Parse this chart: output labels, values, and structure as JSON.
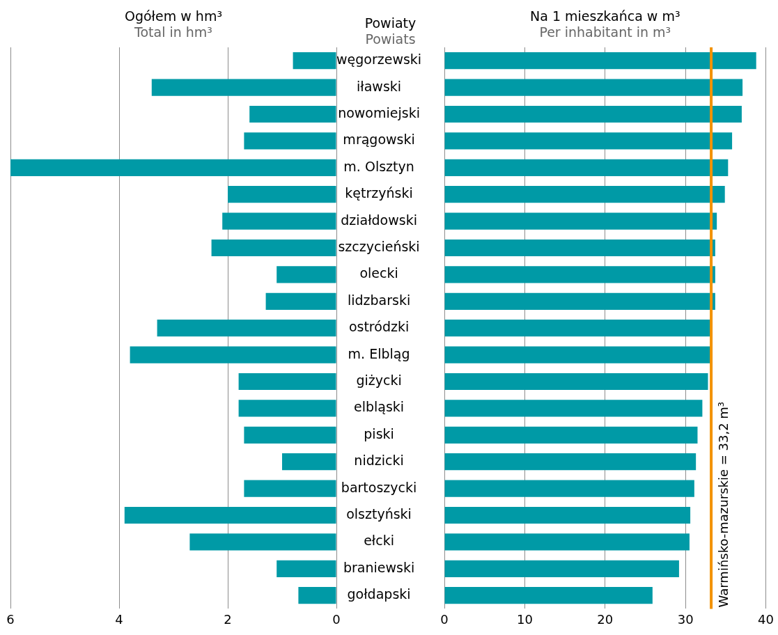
{
  "chart_data": [
    {
      "type": "bar",
      "orientation": "horizontal",
      "title": "Ogółem w hm³",
      "subtitle": "Total in hm³",
      "ylabel": "Powiaty\nPowiats",
      "categories": [
        "węgorzewski",
        "iławski",
        "nowomiejski",
        "mrągowski",
        "m. Olsztyn",
        "kętrzyński",
        "działdowski",
        "szczycieński",
        "olecki",
        "lidzbarski",
        "ostródzki",
        "m. Elbląg",
        "giżycki",
        "elbląski",
        "piski",
        "nidzicki",
        "bartoszycki",
        "olsztyński",
        "ełcki",
        "braniewski",
        "gołdapski"
      ],
      "values": [
        0.8,
        3.4,
        1.6,
        1.7,
        6.0,
        2.0,
        2.1,
        2.3,
        1.1,
        1.3,
        3.3,
        3.8,
        1.8,
        1.8,
        1.7,
        1.0,
        1.7,
        3.9,
        2.7,
        1.1,
        0.7
      ],
      "color": "#009aa6",
      "xlim": [
        6,
        0
      ],
      "xticks": [
        6,
        4,
        2,
        0
      ],
      "grid": "x"
    },
    {
      "type": "bar",
      "orientation": "horizontal",
      "title": "Na 1 mieszkańca w m³",
      "subtitle": "Per inhabitant in m³",
      "categories": [
        null,
        null,
        null,
        null,
        null,
        null,
        null,
        null,
        null,
        null,
        null,
        null,
        null,
        null,
        null,
        null,
        null,
        null,
        null,
        null,
        null
      ],
      "values": [
        38.8,
        37.1,
        37.0,
        35.8,
        35.3,
        34.9,
        33.9,
        33.7,
        33.7,
        33.7,
        33.2,
        33.1,
        32.8,
        32.1,
        31.5,
        31.3,
        31.1,
        30.6,
        30.5,
        29.2,
        25.9
      ],
      "color": "#009aa6",
      "xlim": [
        0,
        40
      ],
      "xticks": [
        0,
        10,
        20,
        30,
        40
      ],
      "grid": "x",
      "tick_labels": "x",
      "ref_lines": [
        {
          "axis": "x",
          "value": 33.2,
          "label": "Warmińsko-mazurskie = 33,2 m³",
          "color": "#f39200"
        }
      ]
    }
  ]
}
